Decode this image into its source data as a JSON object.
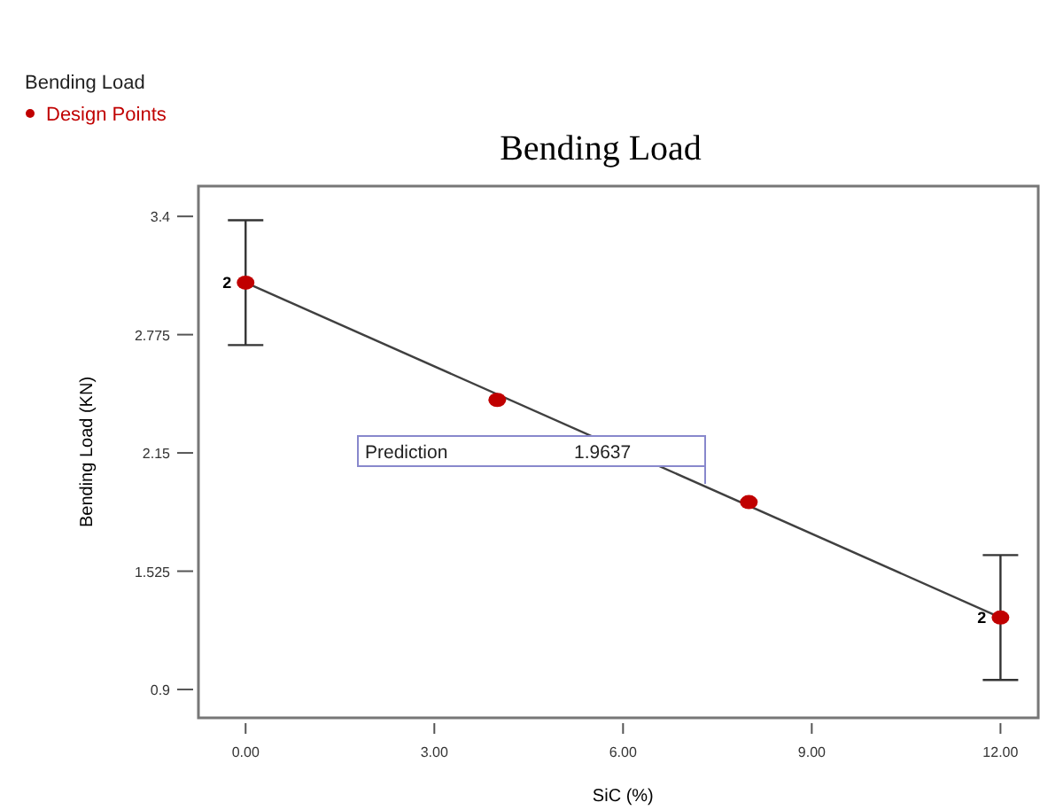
{
  "chart_data": {
    "type": "scatter",
    "title": "Bending Load",
    "subtitle": "Bending Load",
    "xlabel": "SiC (%)",
    "ylabel": "Bending Load (KN)",
    "xlim": [
      -0.75,
      12.6
    ],
    "ylim": [
      0.75,
      3.56
    ],
    "xticks": [
      {
        "value": 0,
        "label": "0.00"
      },
      {
        "value": 3,
        "label": "3.00"
      },
      {
        "value": 6,
        "label": "6.00"
      },
      {
        "value": 9,
        "label": "9.00"
      },
      {
        "value": 12,
        "label": "12.00"
      }
    ],
    "yticks": [
      0.9,
      1.525,
      2.15,
      2.775,
      3.4
    ],
    "legend": "top left",
    "grid": false,
    "series": [
      {
        "name": "Design Points",
        "color": "#c00000",
        "marker": "circle",
        "x": [
          0,
          4,
          8,
          12
        ],
        "values": [
          3.05,
          2.43,
          1.89,
          1.28
        ],
        "errors": [
          [
            2.72,
            3.38
          ],
          null,
          null,
          [
            0.95,
            1.61
          ]
        ]
      },
      {
        "type": "line",
        "color": "#404040",
        "line_style": "solid",
        "x": [
          0,
          12
        ],
        "values": [
          3.05,
          1.28
        ]
      }
    ],
    "annotations": [
      {
        "text": "2",
        "x": 0,
        "y": 3.05
      },
      {
        "text": "2",
        "x": 12,
        "y": 1.28
      },
      "Prediction",
      "1.9637"
    ]
  }
}
